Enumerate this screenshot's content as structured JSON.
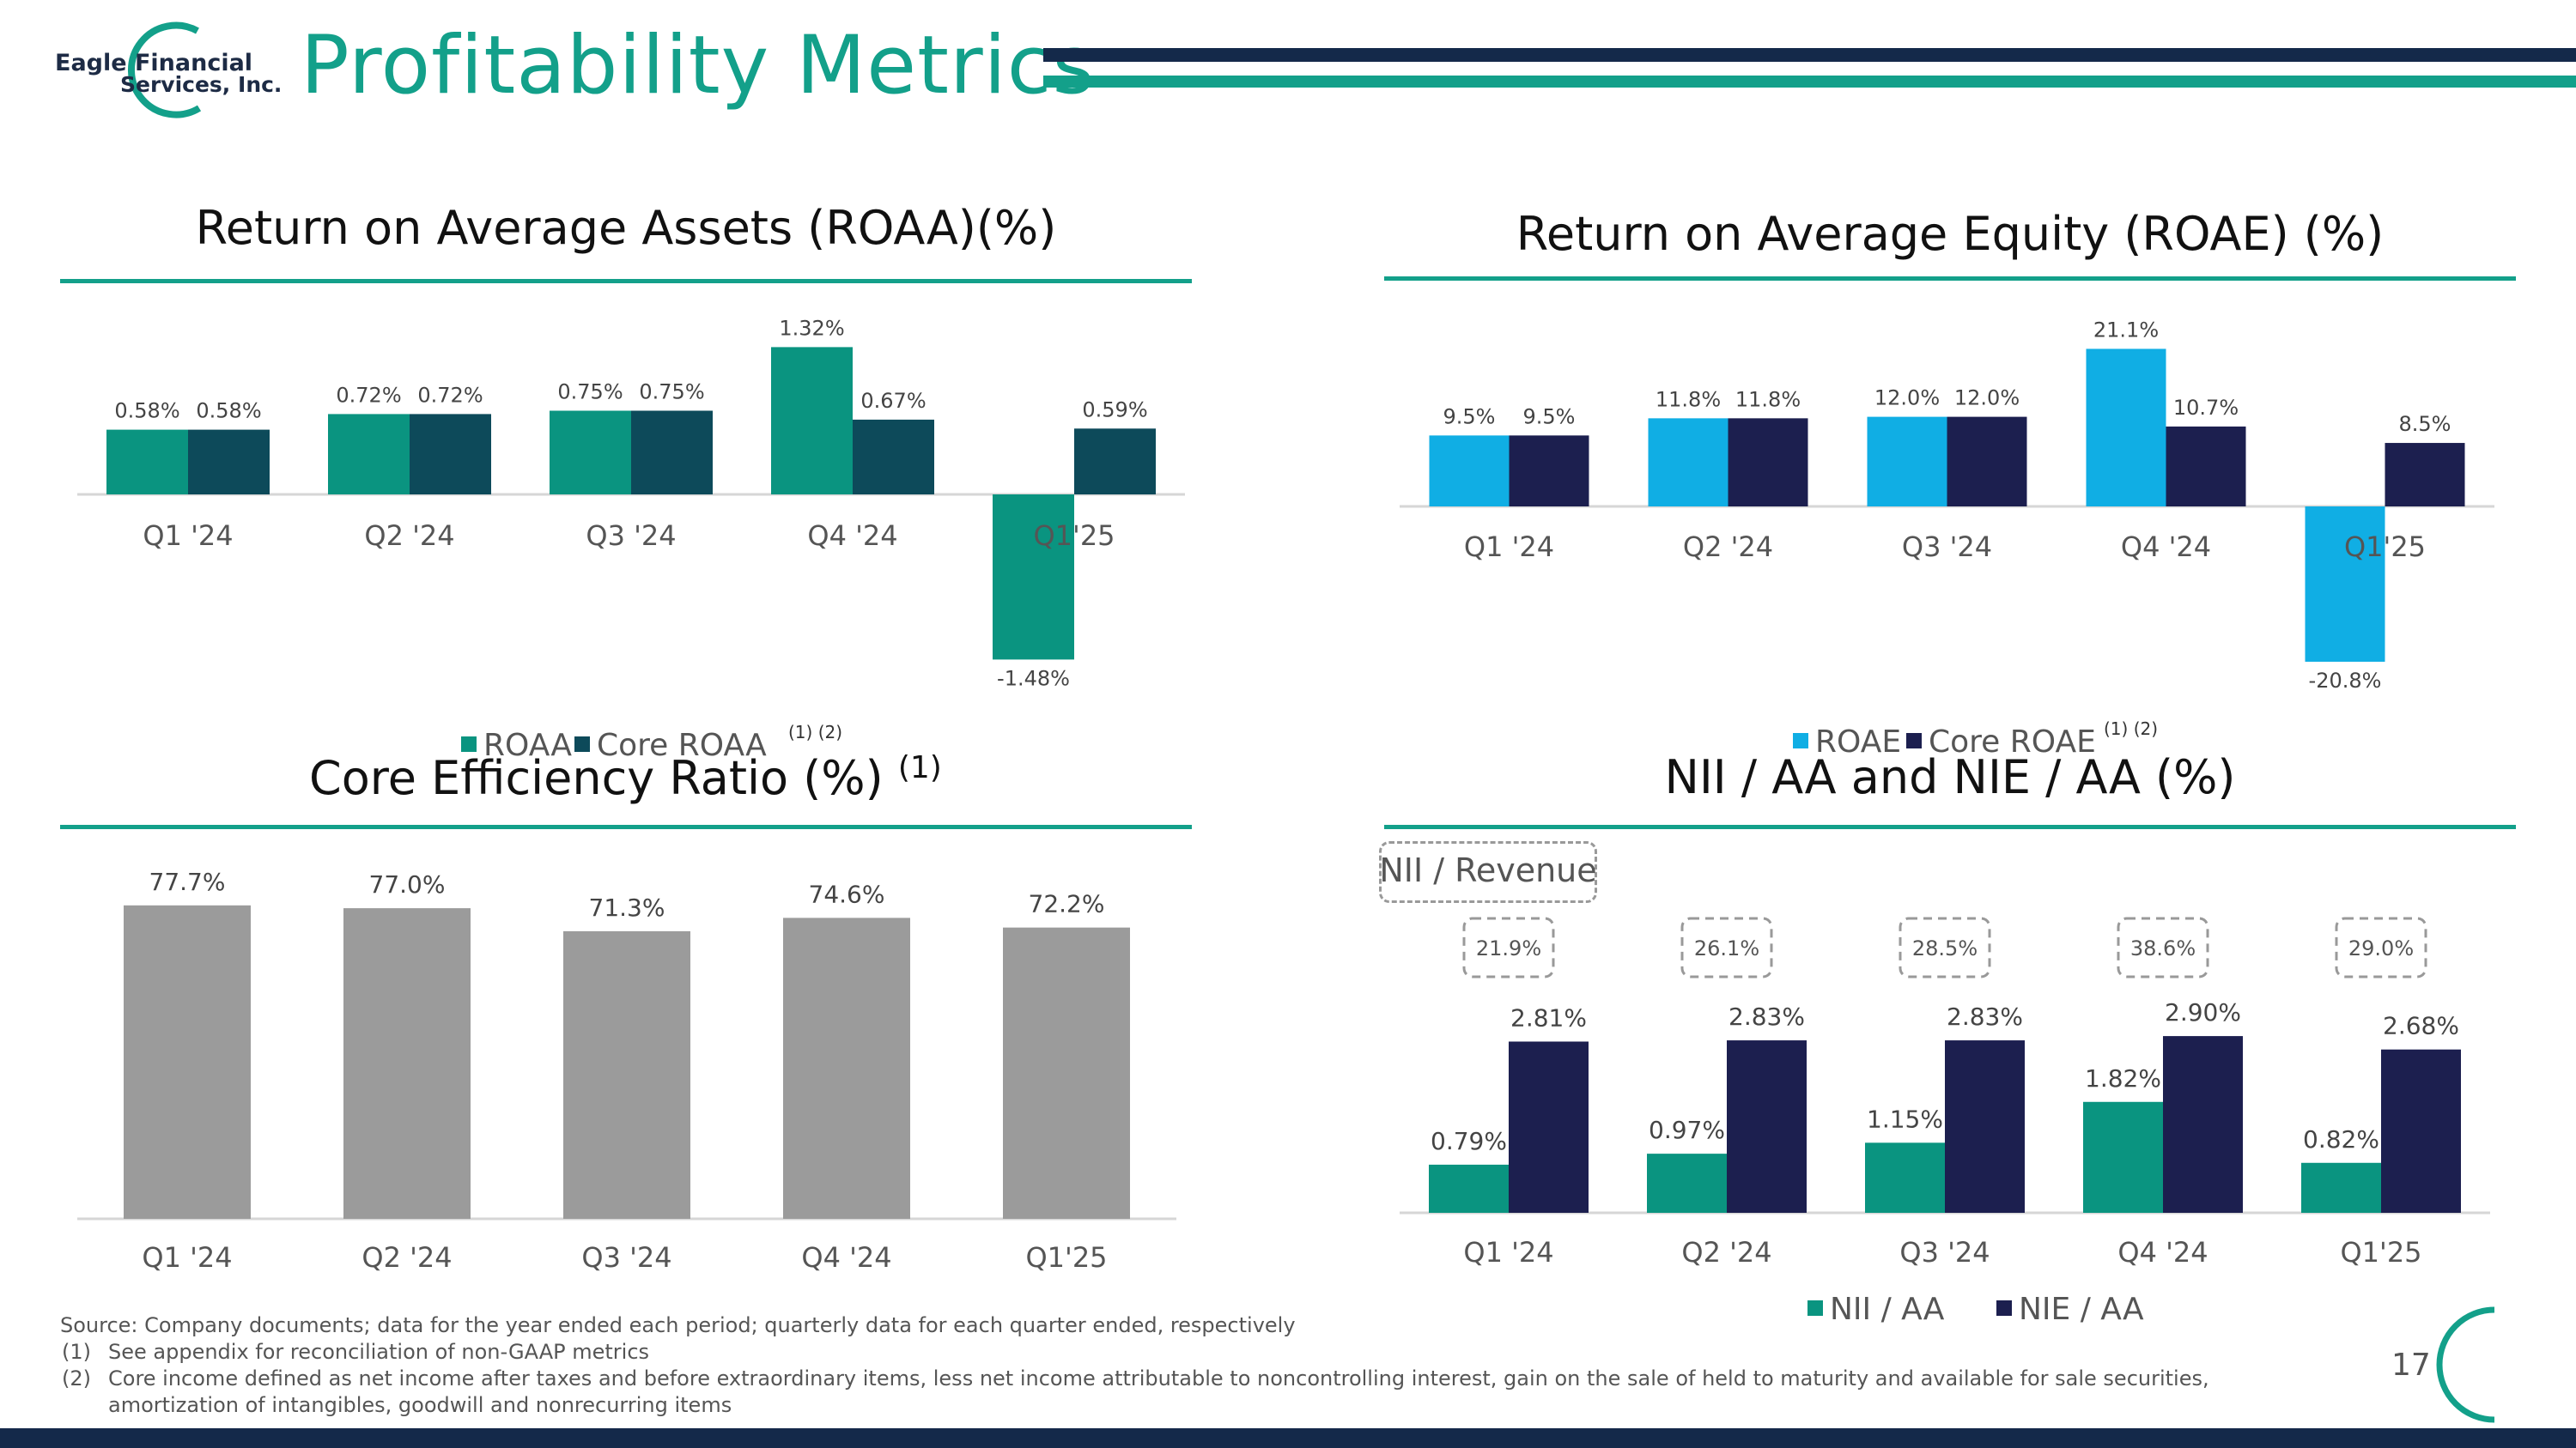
{
  "header": {
    "logo_line1": "Eagle Financial",
    "logo_line2": "Services, Inc.",
    "title": "Profitability Metrics"
  },
  "colors": {
    "teal": "#0a9480",
    "dark_teal": "#0d4a5a",
    "blue": "#10aee4",
    "navy": "#1c1f4f",
    "gray": "#9b9b9b",
    "header_navy": "#14294a"
  },
  "chart_data": [
    {
      "id": "roaa",
      "type": "bar",
      "title": "Return on Average Assets (ROAA)(%)",
      "categories": [
        "Q1 '24",
        "Q2 '24",
        "Q3 '24",
        "Q4 '24",
        "Q1'25"
      ],
      "series": [
        {
          "name": "ROAA",
          "values": [
            0.58,
            0.72,
            0.75,
            1.32,
            -1.48
          ],
          "labels": [
            "0.58%",
            "0.72%",
            "0.75%",
            "1.32%",
            "-1.48%"
          ]
        },
        {
          "name": "Core ROAA",
          "values": [
            0.58,
            0.72,
            0.75,
            0.67,
            0.59
          ],
          "labels": [
            "0.58%",
            "0.72%",
            "0.75%",
            "0.67%",
            "0.59%"
          ]
        }
      ],
      "legend_note": "(1) (2)",
      "legend_position": "bottom"
    },
    {
      "id": "roae",
      "type": "bar",
      "title": "Return on Average Equity (ROAE) (%)",
      "categories": [
        "Q1 '24",
        "Q2 '24",
        "Q3 '24",
        "Q4 '24",
        "Q1'25"
      ],
      "series": [
        {
          "name": "ROAE",
          "values": [
            9.5,
            11.8,
            12.0,
            21.1,
            -20.8
          ],
          "labels": [
            "9.5%",
            "11.8%",
            "12.0%",
            "21.1%",
            "-20.8%"
          ]
        },
        {
          "name": "Core ROAE",
          "values": [
            9.5,
            11.8,
            12.0,
            10.7,
            8.5
          ],
          "labels": [
            "9.5%",
            "11.8%",
            "12.0%",
            "10.7%",
            "8.5%"
          ]
        }
      ],
      "legend_note": "(1) (2)",
      "legend_position": "bottom"
    },
    {
      "id": "efficiency",
      "type": "bar",
      "title": "Core Efficiency Ratio (%)",
      "title_note": "(1)",
      "categories": [
        "Q1 '24",
        "Q2 '24",
        "Q3 '24",
        "Q4 '24",
        "Q1'25"
      ],
      "series": [
        {
          "values": [
            77.7,
            77.0,
            71.3,
            74.6,
            72.2
          ],
          "labels": [
            "77.7%",
            "77.0%",
            "71.3%",
            "74.6%",
            "72.2%"
          ]
        }
      ]
    },
    {
      "id": "nii_nie",
      "type": "bar",
      "title": "NII / AA and NIE / AA (%)",
      "categories": [
        "Q1 '24",
        "Q2 '24",
        "Q3 '24",
        "Q4 '24",
        "Q1'25"
      ],
      "series": [
        {
          "name": "NII / AA",
          "values": [
            0.79,
            0.97,
            1.15,
            1.82,
            0.82
          ],
          "labels": [
            "0.79%",
            "0.97%",
            "1.15%",
            "1.82%",
            "0.82%"
          ]
        },
        {
          "name": "NIE / AA",
          "values": [
            2.81,
            2.83,
            2.83,
            2.9,
            2.68
          ],
          "labels": [
            "2.81%",
            "2.83%",
            "2.83%",
            "2.90%",
            "2.68%"
          ]
        }
      ],
      "annotation_label": "NII / Revenue",
      "annotations": [
        "21.9%",
        "26.1%",
        "28.5%",
        "38.6%",
        "29.0%"
      ],
      "legend_position": "bottom"
    }
  ],
  "footer": {
    "source": "Source: Company documents; data for the year ended each period; quarterly data for each quarter ended, respectively",
    "notes": [
      {
        "num": "(1)",
        "text": "See appendix for reconciliation of non-GAAP metrics"
      },
      {
        "num": "(2)",
        "text": "Core income defined as net income after taxes and before extraordinary items, less net income attributable to noncontrolling interest, gain on the sale of held to maturity and available for sale securities,"
      }
    ],
    "note2_cont": "amortization of intangibles, goodwill and nonrecurring items",
    "page_number": "17"
  }
}
